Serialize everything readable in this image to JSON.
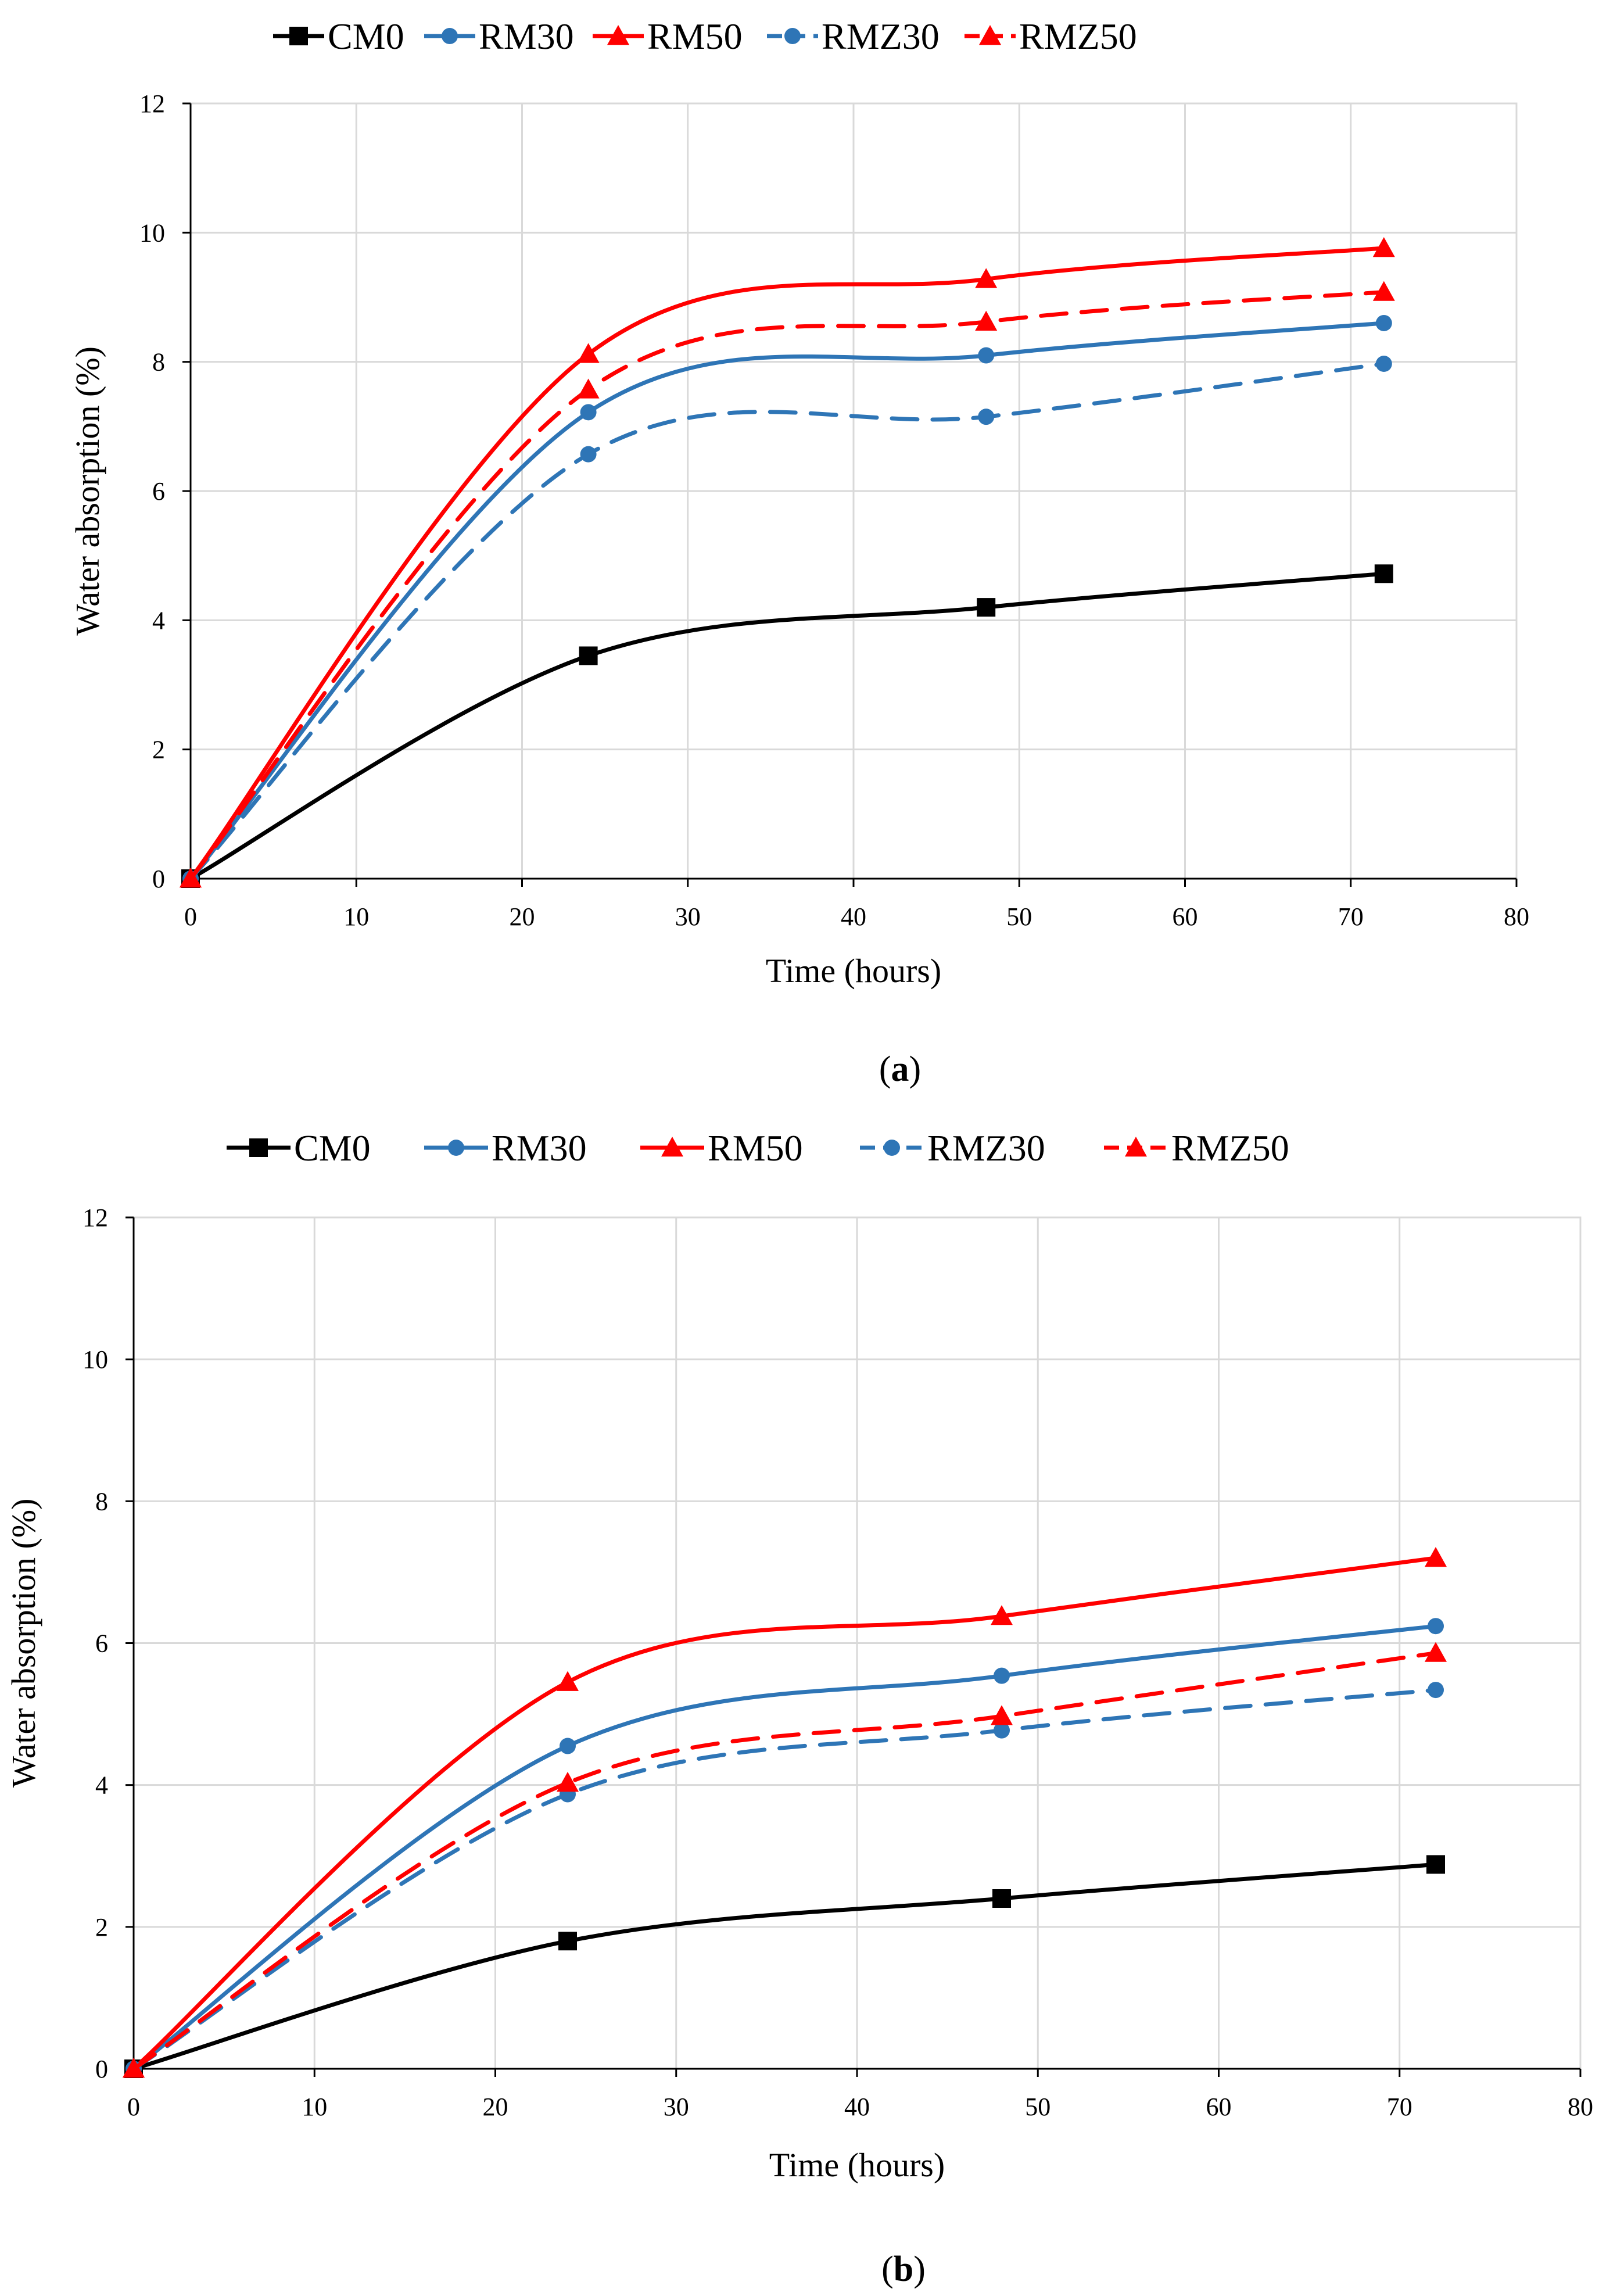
{
  "chart_data": [
    {
      "type": "line",
      "panel": "a",
      "caption": "a",
      "xlabel": "Time (hours)",
      "ylabel": "Water absorption (%)",
      "xlim": [
        0,
        80
      ],
      "ylim": [
        0,
        12
      ],
      "xticks": [
        0,
        10,
        20,
        30,
        40,
        50,
        60,
        70,
        80
      ],
      "yticks": [
        0,
        2,
        4,
        6,
        8,
        10,
        12
      ],
      "grid": true,
      "legend_position": "top",
      "x": [
        0,
        24,
        48,
        72
      ],
      "series": [
        {
          "name": "CM0",
          "color": "#000000",
          "dash": false,
          "marker": "square",
          "values": [
            0,
            3.45,
            4.2,
            4.72
          ]
        },
        {
          "name": "RM30",
          "color": "#2E75B6",
          "dash": false,
          "marker": "circle",
          "values": [
            0,
            7.22,
            8.1,
            8.6
          ]
        },
        {
          "name": "RM50",
          "color": "#FF0000",
          "dash": false,
          "marker": "triangle",
          "values": [
            0,
            8.12,
            9.28,
            9.76
          ]
        },
        {
          "name": "RMZ30",
          "color": "#2E75B6",
          "dash": true,
          "marker": "circle",
          "values": [
            0,
            6.57,
            7.15,
            7.97
          ]
        },
        {
          "name": "RMZ50",
          "color": "#FF0000",
          "dash": true,
          "marker": "triangle",
          "values": [
            0,
            7.57,
            8.62,
            9.08
          ]
        }
      ]
    },
    {
      "type": "line",
      "panel": "b",
      "caption": "b",
      "xlabel": "Time (hours)",
      "ylabel": "Water absorption (%)",
      "xlim": [
        0,
        80
      ],
      "ylim": [
        0,
        12
      ],
      "xticks": [
        0,
        10,
        20,
        30,
        40,
        50,
        60,
        70,
        80
      ],
      "yticks": [
        0,
        2,
        4,
        6,
        8,
        10,
        12
      ],
      "grid": true,
      "legend_position": "top",
      "x": [
        0,
        24,
        48,
        72
      ],
      "series": [
        {
          "name": "CM0",
          "color": "#000000",
          "dash": false,
          "marker": "square",
          "values": [
            0,
            1.8,
            2.4,
            2.88
          ]
        },
        {
          "name": "RM30",
          "color": "#2E75B6",
          "dash": false,
          "marker": "circle",
          "values": [
            0,
            4.55,
            5.54,
            6.24
          ]
        },
        {
          "name": "RM50",
          "color": "#FF0000",
          "dash": false,
          "marker": "triangle",
          "values": [
            0,
            5.45,
            6.38,
            7.2
          ]
        },
        {
          "name": "RMZ30",
          "color": "#2E75B6",
          "dash": true,
          "marker": "circle",
          "values": [
            0,
            3.87,
            4.77,
            5.34
          ]
        },
        {
          "name": "RMZ50",
          "color": "#FF0000",
          "dash": true,
          "marker": "triangle",
          "values": [
            0,
            4.03,
            4.97,
            5.86
          ]
        }
      ]
    }
  ]
}
